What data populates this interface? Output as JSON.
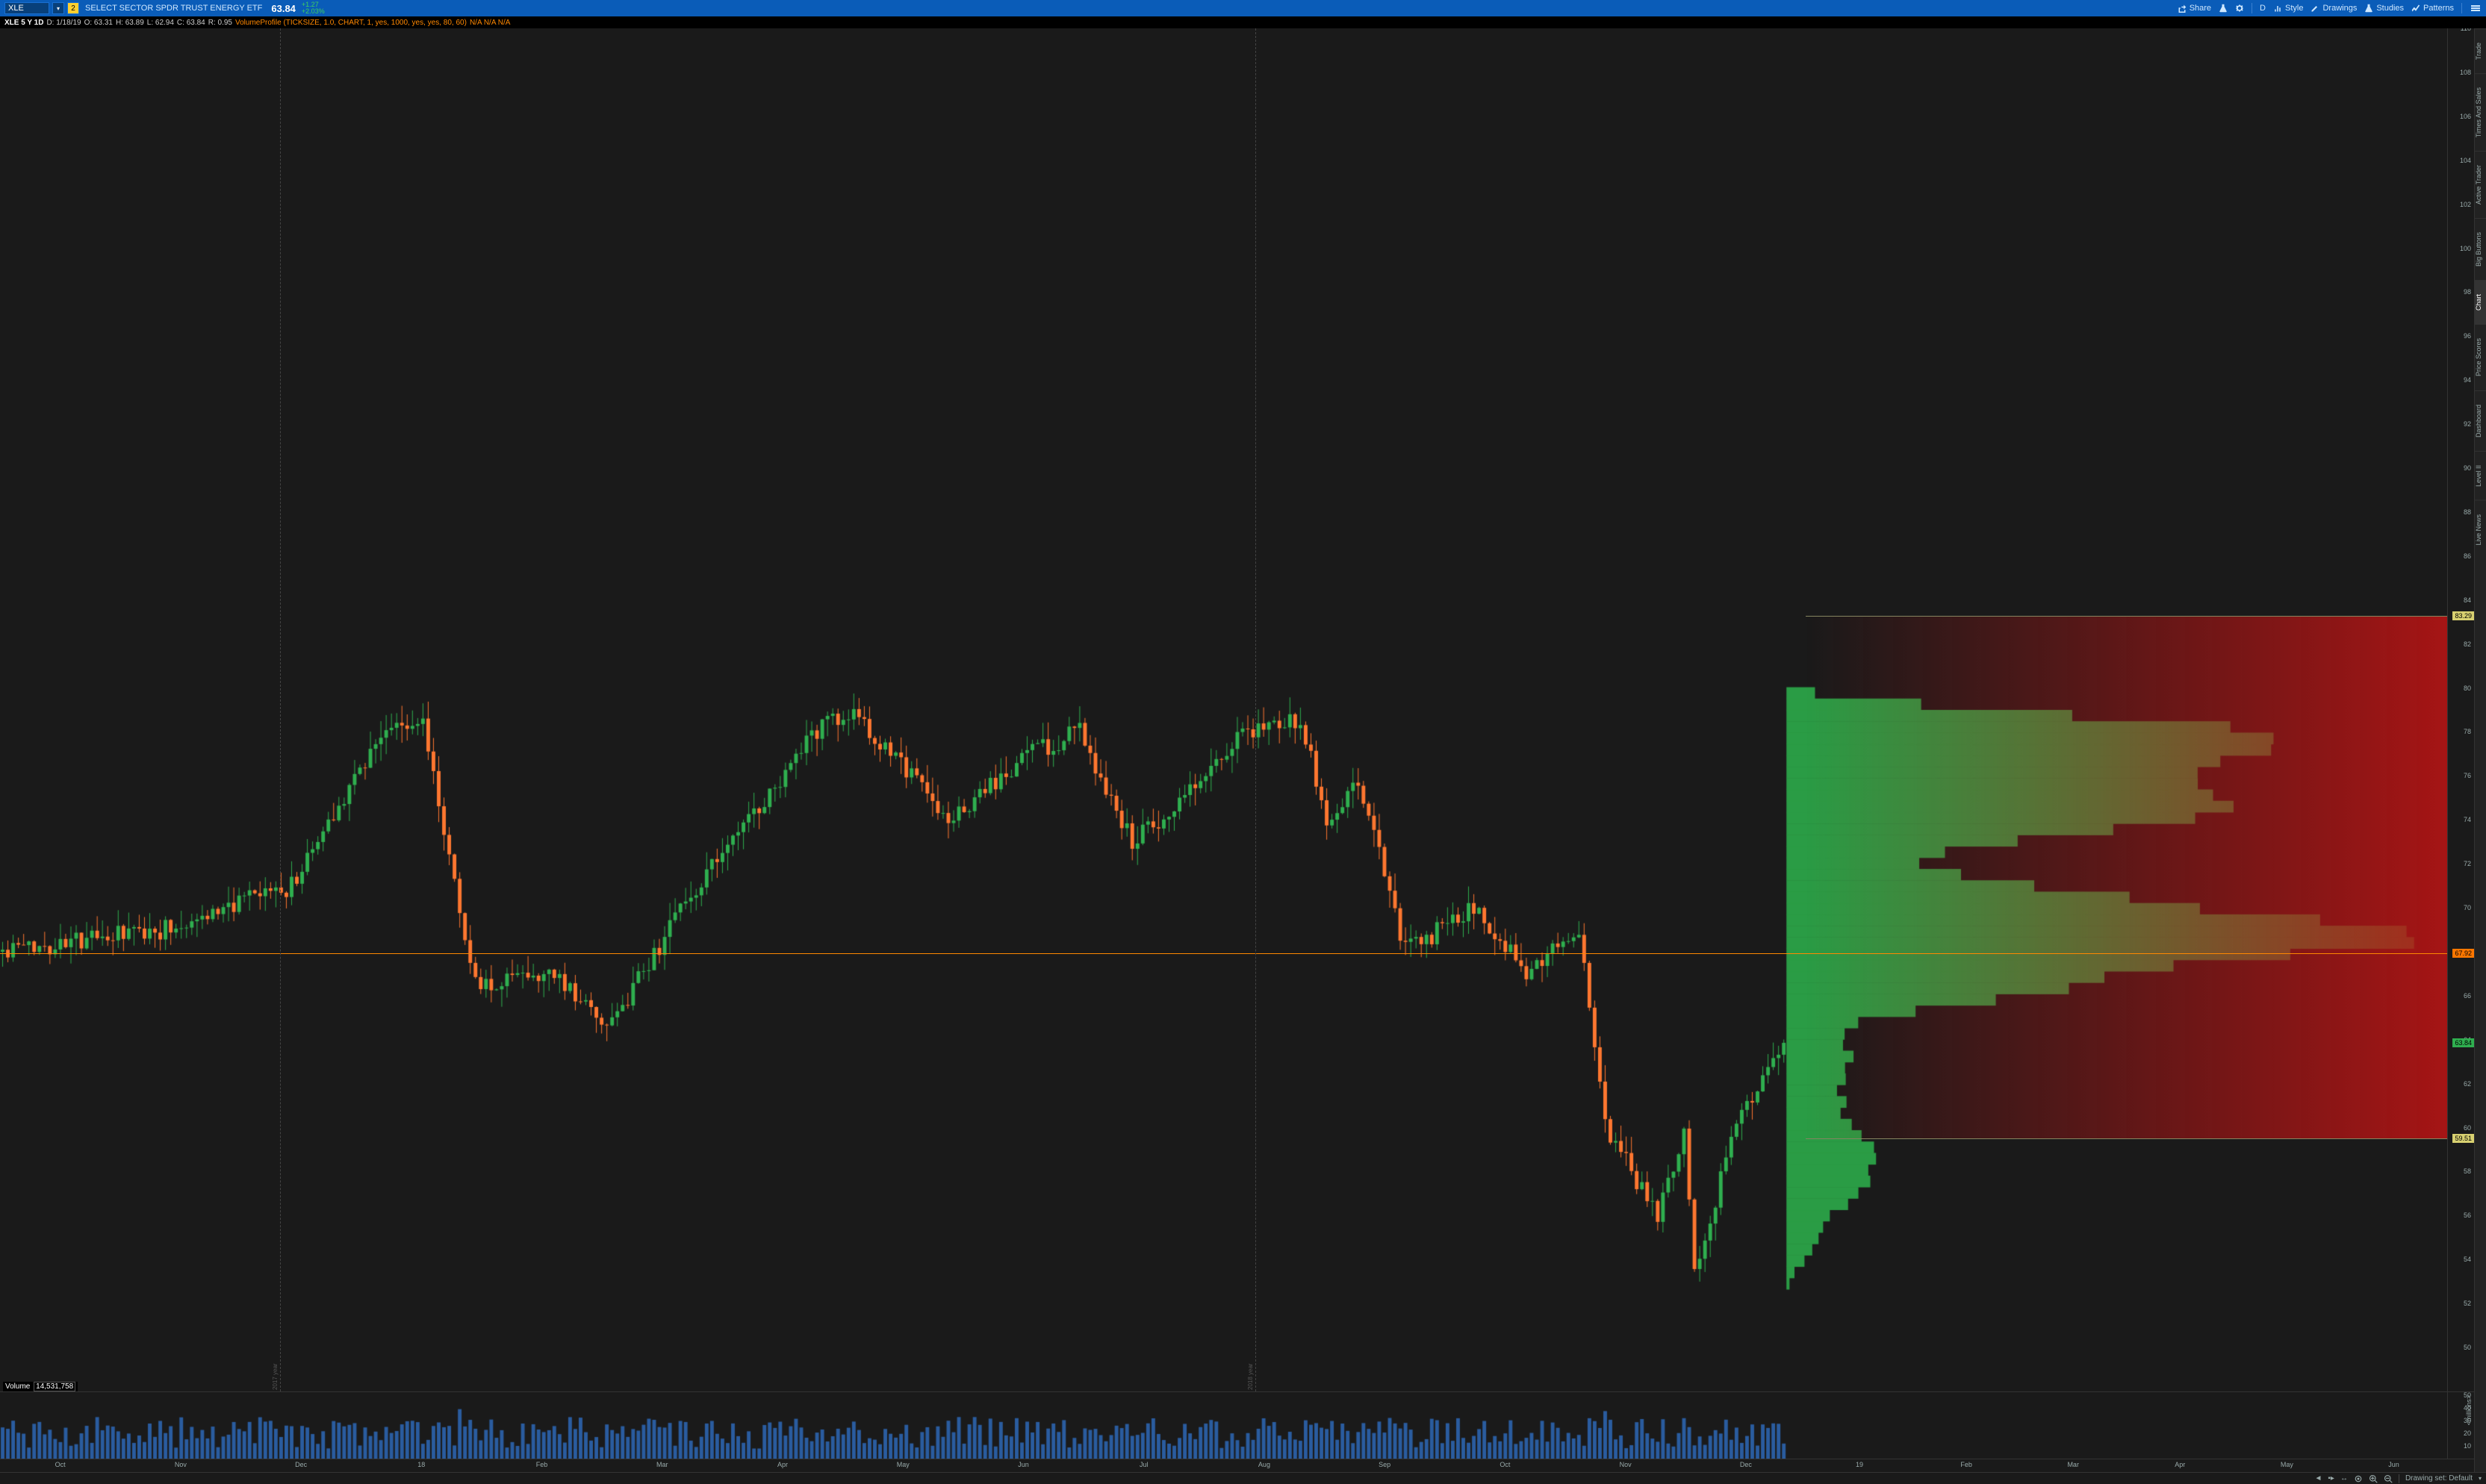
{
  "toolbar": {
    "symbol": "XLE",
    "instrument_name": "SELECT SECTOR SPDR TRUST ENERGY ETF",
    "last_price": "63.84",
    "change_abs": "+1.27",
    "change_pct": "+2.03%",
    "share": "Share",
    "timeframe": "D",
    "style": "Style",
    "drawings": "Drawings",
    "studies": "Studies",
    "patterns": "Patterns"
  },
  "infobar": {
    "symbol_line": "XLE 5 Y 1D",
    "date_label": "D: 1/18/19",
    "o": "O: 63.31",
    "h": "H: 63.89",
    "l": "L: 62.94",
    "c": "C: 63.84",
    "r": "R: 0.95",
    "vp": "VolumeProfile (TICKSIZE, 1.0, CHART, 1, yes, 1000, yes, yes, 80, 60)",
    "na": "N/A  N/A  N/A"
  },
  "price_axis": {
    "min": 48,
    "max": 110,
    "step": 2,
    "tags": {
      "vah": {
        "value": 83.29,
        "label": "83.29",
        "color": "tag-yellow"
      },
      "poc": {
        "value": 67.92,
        "label": "67.92",
        "color": "tag-orange"
      },
      "last": {
        "value": 63.84,
        "label": "63.84",
        "color": "tag-green"
      },
      "val": {
        "value": 59.51,
        "label": "59.51",
        "color": "tag-yellow"
      }
    }
  },
  "xaxis": {
    "labels": [
      "Oct",
      "Nov",
      "Dec",
      "18",
      "Feb",
      "Mar",
      "Apr",
      "May",
      "Jun",
      "Jul",
      "Aug",
      "Sep",
      "Oct",
      "Nov",
      "Dec",
      "19",
      "Feb",
      "Mar",
      "Apr",
      "May",
      "Jun"
    ]
  },
  "volume": {
    "label": "Volume",
    "value": "14,531,758",
    "ymax": 50,
    "ystep": 10,
    "unit": "<millions>"
  },
  "side_tabs": [
    "Trade",
    "Times And Sales",
    "Active Trader",
    "Big Buttons",
    "Chart",
    "Price Scores",
    "Dashboard",
    "Level II",
    "Live News"
  ],
  "year_markers": [
    {
      "x_pct": 15.5,
      "label": "2017 year"
    },
    {
      "x_pct": 69.5,
      "label": "2018 year"
    }
  ],
  "profile": {
    "start_pct": 73,
    "value_area": {
      "high": 83.29,
      "low": 59.51,
      "poc": 67.92
    },
    "colors": {
      "body": "#2a9c45",
      "body_dark": "#1f5a2a",
      "va_overlay_start": "rgba(150,20,20,0.0)",
      "va_overlay_end": "rgba(190,20,20,0.85)"
    }
  },
  "statusbar": {
    "drawing_set": "Drawing set: Default"
  },
  "chart_colors": {
    "bg": "#1a1a1a",
    "up": "#2faf4f",
    "down": "#ff7730",
    "vol": "#2a5c9f"
  },
  "seed": 42
}
